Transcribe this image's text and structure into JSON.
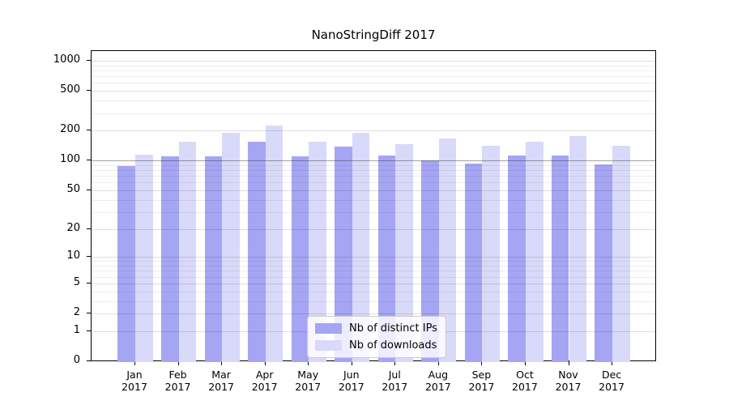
{
  "chart_data": {
    "type": "bar",
    "title": "NanoStringDiff 2017",
    "categories": [
      "Jan 2017",
      "Feb 2017",
      "Mar 2017",
      "Apr 2017",
      "May 2017",
      "Jun 2017",
      "Jul 2017",
      "Aug 2017",
      "Sep 2017",
      "Oct 2017",
      "Nov 2017",
      "Dec 2017"
    ],
    "series": [
      {
        "name": "Nb of distinct IPs",
        "color": "#a5a5f3",
        "values": [
          88,
          110,
          110,
          155,
          110,
          138,
          113,
          100,
          93,
          112,
          112,
          92
        ]
      },
      {
        "name": "Nb of downloads",
        "color": "#d9d9f9",
        "values": [
          115,
          155,
          190,
          225,
          155,
          190,
          145,
          165,
          140,
          155,
          175,
          140
        ]
      }
    ],
    "xlabel": "",
    "ylabel": "",
    "yscale": "log1p",
    "y_ticks": [
      0,
      1,
      2,
      5,
      10,
      20,
      50,
      100,
      200,
      500,
      1000
    ],
    "ylim": [
      0,
      1300
    ],
    "grid": true,
    "emphasized_gridline_value": 100,
    "legend_position": "lower center"
  },
  "colors": {
    "distinct_ips_bar": "#a5a5f3",
    "downloads_bar": "#d9d9f9",
    "axis": "#000000",
    "emphasized_gridline": "#8f8f8f",
    "major_gridline": "#dddddd",
    "minor_gridline": "#ececec"
  }
}
